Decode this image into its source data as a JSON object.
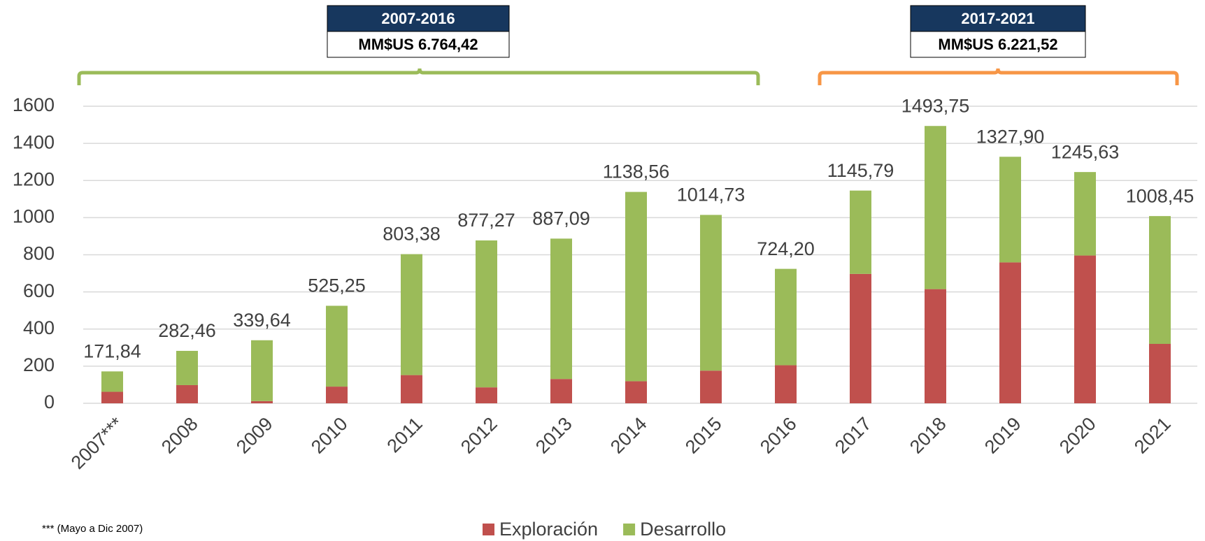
{
  "chart_data": {
    "type": "stacked_bar",
    "categories": [
      "2007***",
      "2008",
      "2009",
      "2010",
      "2011",
      "2012",
      "2013",
      "2014",
      "2015",
      "2016",
      "2017",
      "2018",
      "2019",
      "2020",
      "2021"
    ],
    "series": [
      {
        "name": "Exploración",
        "color": "#c0504d",
        "values": [
          62,
          98,
          12,
          90,
          152,
          86,
          131,
          119,
          176,
          205,
          697,
          615,
          759,
          796,
          320
        ]
      },
      {
        "name": "Desarrollo",
        "color": "#9bbb59",
        "values": [
          109.84,
          184.46,
          327.64,
          435.25,
          651.38,
          791.27,
          756.09,
          1019.56,
          838.73,
          519.2,
          448.79,
          878.75,
          568.9,
          449.63,
          688.45
        ]
      }
    ],
    "totals": [
      171.84,
      282.46,
      339.64,
      525.25,
      803.38,
      877.27,
      887.09,
      1138.56,
      1014.73,
      724.2,
      1145.79,
      1493.75,
      1327.9,
      1245.63,
      1008.45
    ],
    "total_labels": [
      "171,84",
      "282,46",
      "339,64",
      "525,25",
      "803,38",
      "877,27",
      "887,09",
      "1138,56",
      "1014,73",
      "724,20",
      "1145,79",
      "1493,75",
      "1327,90",
      "1245,63",
      "1008,45"
    ],
    "ylim": [
      0,
      1600
    ],
    "yticks": [
      0,
      200,
      400,
      600,
      800,
      1000,
      1200,
      1400,
      1600
    ],
    "grid": true,
    "legend": "bottom",
    "annotations": [
      {
        "period": "2007-2016",
        "amount": "MM$US 6.764,42"
      },
      {
        "period": "2017-2021",
        "amount": "MM$US 6.221,52"
      }
    ],
    "footnote": "*** (Mayo a Dic 2007)"
  }
}
